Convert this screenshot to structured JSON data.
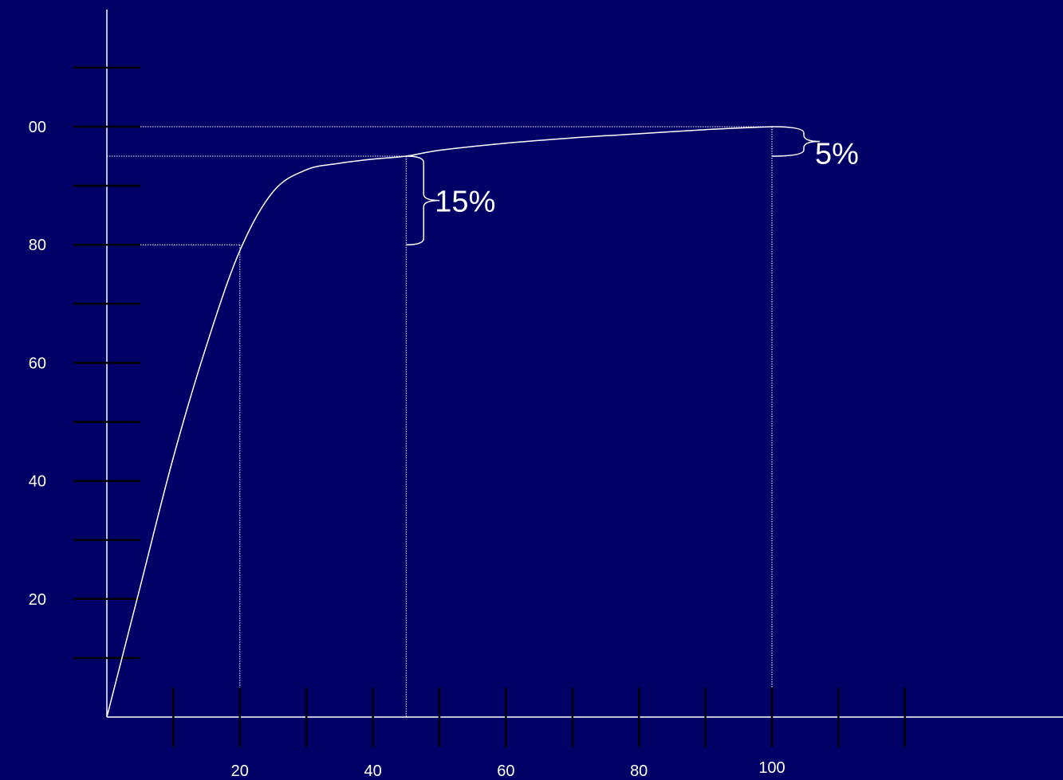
{
  "chart_data": {
    "type": "line",
    "title": "",
    "xlabel": "",
    "ylabel": "",
    "xlim": [
      -2.8,
      141
    ],
    "ylim": [
      0,
      121
    ],
    "x_ticks": [
      10,
      20,
      30,
      40,
      50,
      60,
      70,
      80,
      90,
      100,
      110,
      120
    ],
    "x_tick_labels": [
      {
        "value": 20,
        "label": "20"
      },
      {
        "value": 40,
        "label": "40"
      },
      {
        "value": 60,
        "label": "60"
      },
      {
        "value": 80,
        "label": "80"
      },
      {
        "value": 100,
        "label": "100"
      }
    ],
    "y_ticks": [
      10,
      20,
      30,
      40,
      50,
      60,
      70,
      80,
      90,
      100,
      110
    ],
    "y_tick_labels": [
      {
        "value": 20,
        "label": "20"
      },
      {
        "value": 40,
        "label": "40"
      },
      {
        "value": 60,
        "label": "60"
      },
      {
        "value": 80,
        "label": "80"
      },
      {
        "value": 100,
        "label": "00"
      }
    ],
    "series": [
      {
        "color": "#ffffff",
        "x": [
          0,
          5,
          10,
          15,
          20,
          25,
          30,
          35,
          40,
          45,
          50,
          60,
          70,
          80,
          90,
          100
        ],
        "y": [
          0,
          22,
          44,
          63,
          79,
          89,
          92.7,
          93.8,
          94.5,
          95,
          96,
          97.2,
          98.1,
          98.8,
          99.5,
          100
        ]
      }
    ],
    "guides": [
      {
        "x": 20,
        "y": 80
      },
      {
        "x": 45,
        "y": 95
      },
      {
        "x": 100,
        "y": 100
      }
    ],
    "annotations": [
      {
        "label": "15%",
        "x": 45,
        "y_from": 80,
        "y_to": 95
      },
      {
        "label": "5%",
        "x": 100,
        "y_from": 95,
        "y_to": 100
      }
    ],
    "colors": {
      "background": "#000066",
      "foreground": "#ffffff"
    }
  }
}
